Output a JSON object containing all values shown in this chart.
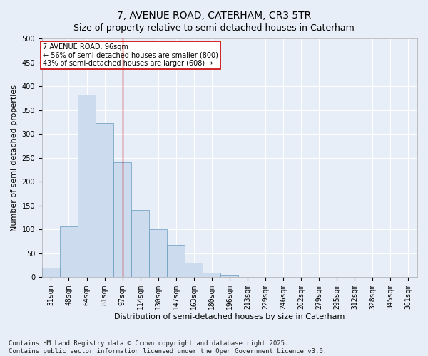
{
  "title": "7, AVENUE ROAD, CATERHAM, CR3 5TR",
  "subtitle": "Size of property relative to semi-detached houses in Caterham",
  "xlabel": "Distribution of semi-detached houses by size in Caterham",
  "ylabel": "Number of semi-detached properties",
  "categories": [
    "31sqm",
    "48sqm",
    "64sqm",
    "81sqm",
    "97sqm",
    "114sqm",
    "130sqm",
    "147sqm",
    "163sqm",
    "180sqm",
    "196sqm",
    "213sqm",
    "229sqm",
    "246sqm",
    "262sqm",
    "279sqm",
    "295sqm",
    "312sqm",
    "328sqm",
    "345sqm",
    "361sqm"
  ],
  "values": [
    20,
    107,
    383,
    323,
    241,
    141,
    101,
    68,
    30,
    9,
    5,
    1,
    0,
    0,
    0,
    0,
    0,
    0,
    0,
    0,
    0
  ],
  "bar_color": "#ccdcee",
  "bar_edge_color": "#6699bb",
  "vline_color": "#cc0000",
  "annotation_text": "7 AVENUE ROAD: 96sqm\n← 56% of semi-detached houses are smaller (800)\n43% of semi-detached houses are larger (608) →",
  "annotation_box_edgecolor": "#cc0000",
  "ylim": [
    0,
    500
  ],
  "yticks": [
    0,
    50,
    100,
    150,
    200,
    250,
    300,
    350,
    400,
    450,
    500
  ],
  "footnote": "Contains HM Land Registry data © Crown copyright and database right 2025.\nContains public sector information licensed under the Open Government Licence v3.0.",
  "bg_color": "#e8eef8",
  "plot_bg_color": "#e8eef8",
  "title_fontsize": 10,
  "label_fontsize": 8,
  "tick_fontsize": 7,
  "footnote_fontsize": 6.5,
  "grid_color": "#ffffff",
  "vline_bin_index": 4
}
